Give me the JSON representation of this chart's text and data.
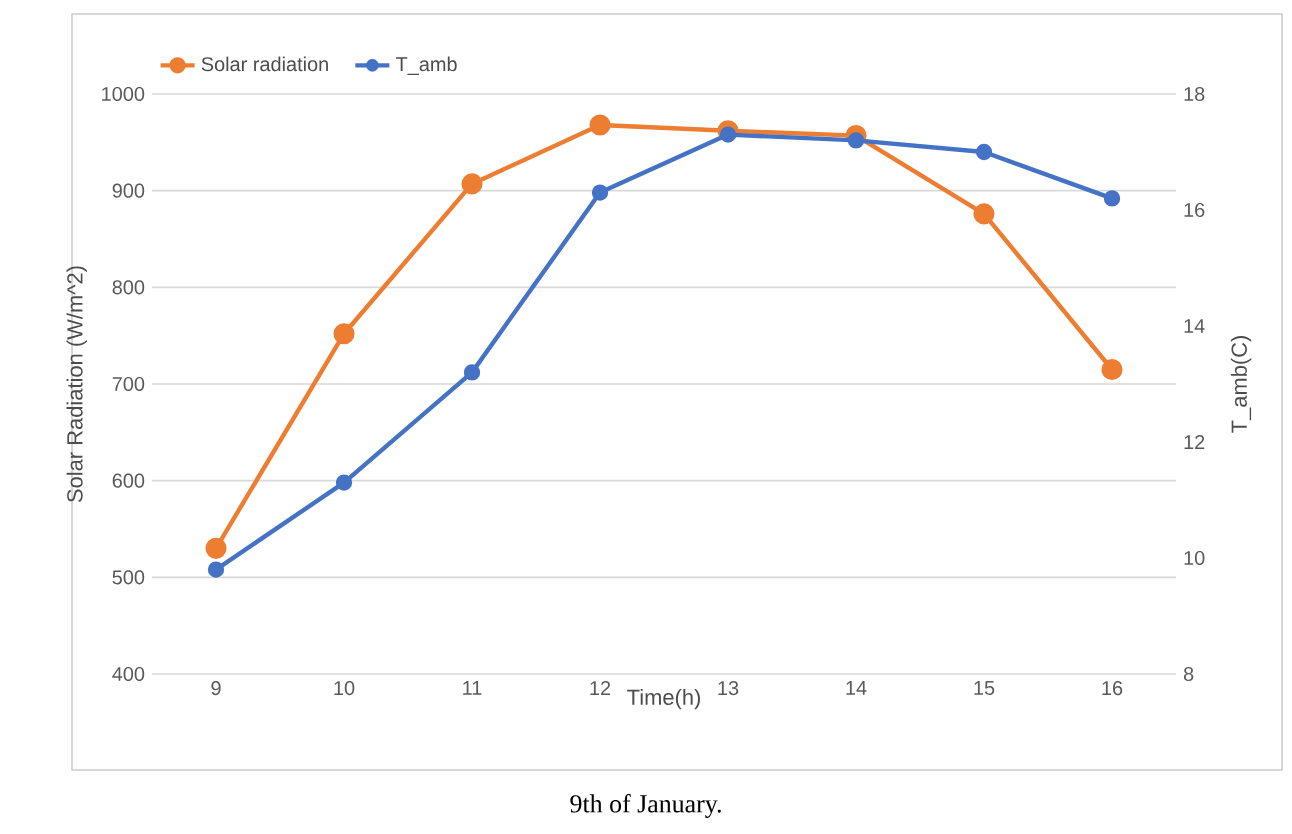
{
  "chart_data": {
    "type": "line",
    "xlabel": "Time(h)",
    "ylabel": "Solar Radiation (W/m^2)",
    "y2label": "T_amb(C)",
    "categories": [
      "9",
      "10",
      "11",
      "12",
      "13",
      "14",
      "15",
      "16"
    ],
    "series": [
      {
        "name": "Solar radiation",
        "color": "#ed7d31",
        "values": [
          530,
          752,
          907,
          968,
          962,
          957,
          876,
          715
        ]
      },
      {
        "name": "T_amb",
        "color": "#4472c4",
        "axis": "y2",
        "values": [
          9.8,
          11.3,
          13.2,
          16.3,
          17.3,
          17.2,
          17.0,
          16.2
        ]
      }
    ],
    "ylim": [
      400,
      1000
    ],
    "yticks": [
      400,
      500,
      600,
      700,
      800,
      900,
      1000
    ],
    "y2lim": [
      8,
      18
    ],
    "y2ticks": [
      8,
      10,
      12,
      14,
      16,
      18
    ],
    "grid": "y",
    "legend": "top left",
    "marker": "circle",
    "line_style": "solid",
    "annotations": [
      "9th of January."
    ]
  }
}
